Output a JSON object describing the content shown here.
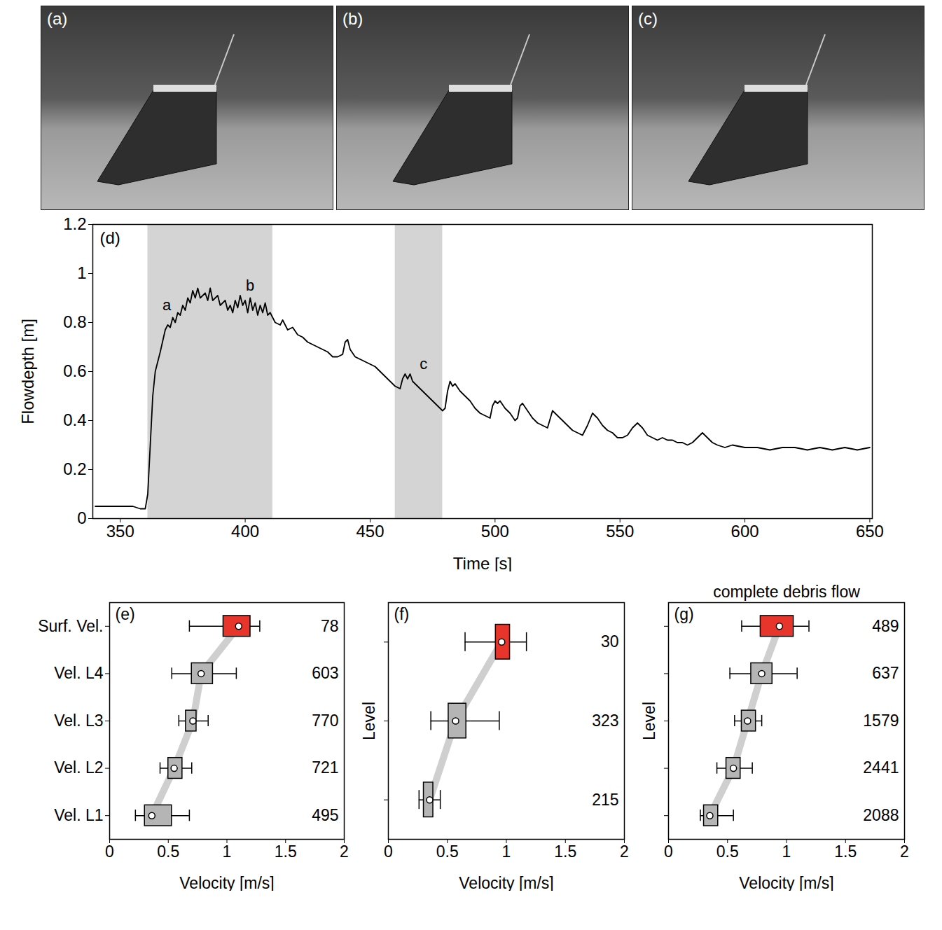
{
  "photos": [
    {
      "label": "(a)"
    },
    {
      "label": "(b)"
    },
    {
      "label": "(c)"
    }
  ],
  "chart_data": [
    {
      "type": "line",
      "panel_label": "(d)",
      "xlabel": "Time [s]",
      "ylabel": "Flowdepth [m]",
      "x": [
        340,
        350,
        355,
        358,
        360,
        361,
        362,
        363,
        364,
        366,
        368,
        369,
        370,
        371,
        372,
        373,
        374,
        375,
        376,
        377,
        378,
        379,
        380,
        381,
        382,
        384,
        385,
        386,
        387,
        389,
        390,
        392,
        393,
        394,
        395,
        396,
        397,
        398,
        399,
        400,
        401,
        402,
        403,
        404,
        405,
        406,
        407,
        408,
        409,
        410,
        412,
        414,
        415,
        417,
        419,
        421,
        423,
        425,
        427,
        429,
        431,
        433,
        435,
        437,
        439,
        440,
        441,
        442,
        444,
        446,
        448,
        450,
        452,
        454,
        456,
        458,
        460,
        462,
        463,
        464,
        465,
        466,
        467,
        469,
        471,
        473,
        475,
        477,
        479,
        480,
        481,
        482,
        483,
        484,
        486,
        488,
        490,
        492,
        494,
        496,
        498,
        499,
        500,
        501,
        502,
        504,
        506,
        508,
        509,
        510,
        511,
        513,
        515,
        517,
        519,
        521,
        523,
        525,
        527,
        529,
        531,
        533,
        535,
        537,
        539,
        541,
        543,
        545,
        547,
        549,
        551,
        553,
        555,
        557,
        559,
        561,
        563,
        565,
        567,
        569,
        571,
        573,
        575,
        577,
        579,
        581,
        583,
        585,
        587,
        589,
        592,
        595,
        600,
        605,
        610,
        615,
        620,
        625,
        630,
        635,
        640,
        645,
        650
      ],
      "values": [
        0.05,
        0.05,
        0.05,
        0.04,
        0.04,
        0.1,
        0.3,
        0.5,
        0.6,
        0.68,
        0.77,
        0.79,
        0.78,
        0.82,
        0.8,
        0.84,
        0.83,
        0.87,
        0.85,
        0.9,
        0.88,
        0.93,
        0.9,
        0.94,
        0.9,
        0.92,
        0.89,
        0.94,
        0.89,
        0.91,
        0.87,
        0.89,
        0.85,
        0.87,
        0.84,
        0.89,
        0.86,
        0.91,
        0.87,
        0.89,
        0.84,
        0.9,
        0.85,
        0.88,
        0.83,
        0.87,
        0.84,
        0.88,
        0.83,
        0.84,
        0.8,
        0.79,
        0.81,
        0.77,
        0.78,
        0.75,
        0.74,
        0.72,
        0.71,
        0.7,
        0.69,
        0.68,
        0.66,
        0.66,
        0.67,
        0.72,
        0.73,
        0.69,
        0.66,
        0.65,
        0.64,
        0.63,
        0.62,
        0.6,
        0.58,
        0.56,
        0.54,
        0.53,
        0.57,
        0.59,
        0.57,
        0.59,
        0.56,
        0.54,
        0.52,
        0.5,
        0.48,
        0.46,
        0.44,
        0.45,
        0.52,
        0.56,
        0.54,
        0.55,
        0.52,
        0.5,
        0.48,
        0.45,
        0.43,
        0.42,
        0.41,
        0.46,
        0.48,
        0.47,
        0.48,
        0.45,
        0.43,
        0.4,
        0.41,
        0.46,
        0.47,
        0.44,
        0.41,
        0.39,
        0.38,
        0.37,
        0.44,
        0.42,
        0.4,
        0.38,
        0.36,
        0.35,
        0.34,
        0.38,
        0.43,
        0.41,
        0.38,
        0.36,
        0.35,
        0.33,
        0.33,
        0.34,
        0.37,
        0.39,
        0.37,
        0.34,
        0.33,
        0.32,
        0.33,
        0.32,
        0.32,
        0.31,
        0.31,
        0.3,
        0.31,
        0.33,
        0.35,
        0.33,
        0.31,
        0.3,
        0.29,
        0.3,
        0.29,
        0.29,
        0.28,
        0.29,
        0.29,
        0.28,
        0.29,
        0.28,
        0.29,
        0.28,
        0.29
      ],
      "color": "#000000",
      "shaded": [
        [
          361,
          411
        ],
        [
          460,
          479
        ]
      ],
      "annotations": [
        {
          "text": "a",
          "x": 368.6,
          "y": 0.87
        },
        {
          "text": "b",
          "x": 402,
          "y": 0.95
        },
        {
          "text": "c",
          "x": 471.4,
          "y": 0.63
        }
      ],
      "xlim": [
        339,
        651
      ],
      "xticks": [
        350,
        400,
        450,
        500,
        550,
        600,
        650
      ],
      "ylim": [
        0,
        1.2
      ],
      "yticks": [
        0,
        0.2,
        0.4,
        0.6,
        0.8,
        1,
        1.2
      ],
      "grid": false
    },
    {
      "type": "box",
      "panel_label": "(e)",
      "xlabel": "Velocity [m/s]",
      "categories": [
        "Surf. Vel.",
        "Vel. L4",
        "Vel. L3",
        "Vel. L2",
        "Vel. L1"
      ],
      "min": [
        0.68,
        0.53,
        0.59,
        0.43,
        0.22
      ],
      "q1": [
        0.97,
        0.7,
        0.65,
        0.5,
        0.3
      ],
      "median": [
        1.1,
        0.78,
        0.71,
        0.55,
        0.36
      ],
      "q3": [
        1.2,
        0.88,
        0.74,
        0.62,
        0.53
      ],
      "max": [
        1.28,
        1.08,
        0.84,
        0.7,
        0.68
      ],
      "counts": [
        78,
        603,
        770,
        721,
        495
      ],
      "colors": [
        "#e8352b",
        "#b5b5b5",
        "#b5b5b5",
        "#b5b5b5",
        "#b5b5b5"
      ],
      "xlim": [
        0,
        2
      ],
      "xticks": [
        0,
        0.5,
        1,
        1.5,
        2
      ]
    },
    {
      "type": "box",
      "panel_label": "(f)",
      "xlabel": "Velocity [m/s]",
      "ylabel": "Level",
      "categories": [
        null,
        null,
        null
      ],
      "min": [
        0.65,
        0.36,
        0.26
      ],
      "q1": [
        0.91,
        0.51,
        0.3
      ],
      "median": [
        0.96,
        0.57,
        0.35
      ],
      "q3": [
        1.03,
        0.66,
        0.38
      ],
      "max": [
        1.17,
        0.94,
        0.44
      ],
      "counts": [
        30,
        323,
        215
      ],
      "colors": [
        "#e8352b",
        "#b5b5b5",
        "#b5b5b5"
      ],
      "xlim": [
        0,
        2
      ],
      "xticks": [
        0,
        0.5,
        1,
        1.5,
        2
      ]
    },
    {
      "type": "box",
      "panel_label": "(g)",
      "title": "complete debris flow",
      "xlabel": "Velocity [m/s]",
      "ylabel": "Level",
      "categories": [
        null,
        null,
        null,
        null,
        null
      ],
      "min": [
        0.62,
        0.52,
        0.56,
        0.41,
        0.27
      ],
      "q1": [
        0.78,
        0.7,
        0.62,
        0.49,
        0.3
      ],
      "median": [
        0.94,
        0.79,
        0.67,
        0.55,
        0.35
      ],
      "q3": [
        1.06,
        0.88,
        0.74,
        0.61,
        0.42
      ],
      "max": [
        1.19,
        1.09,
        0.79,
        0.71,
        0.55
      ],
      "counts": [
        489,
        637,
        1579,
        2441,
        2088
      ],
      "colors": [
        "#e8352b",
        "#b5b5b5",
        "#b5b5b5",
        "#b5b5b5",
        "#b5b5b5"
      ],
      "xlim": [
        0,
        2
      ],
      "xticks": [
        0,
        0.5,
        1,
        1.5,
        2
      ]
    }
  ]
}
